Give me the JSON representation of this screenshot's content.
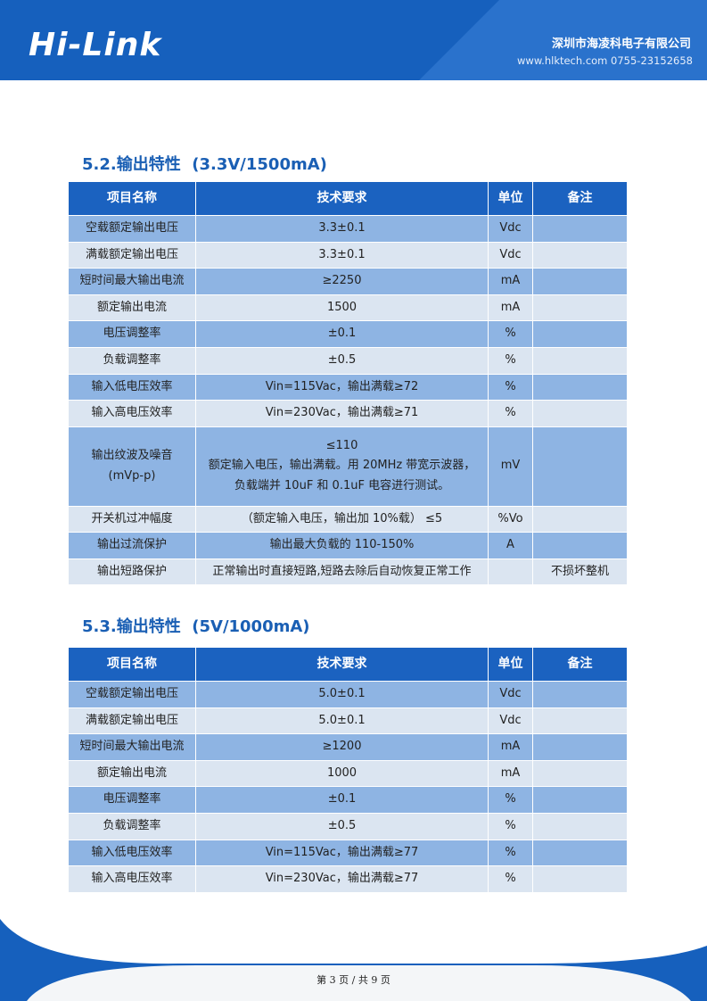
{
  "header": {
    "logo": "Hi-Link",
    "company": "深圳市海凌科电子有限公司",
    "contact": "www.hlktech.com   0755-23152658"
  },
  "sections": [
    {
      "title": "5.2.输出特性  (3.3V/1500mA)",
      "table": {
        "columns": [
          "项目名称",
          "技术要求",
          "单位",
          "备注"
        ],
        "rows": [
          [
            "空载额定输出电压",
            "3.3±0.1",
            "Vdc",
            null
          ],
          [
            "满载额定输出电压",
            "3.3±0.1",
            "Vdc",
            null
          ],
          [
            "短时间最大输出电流",
            "≥2250",
            "mA",
            null
          ],
          [
            "额定输出电流",
            "1500",
            "mA",
            null
          ],
          [
            "电压调整率",
            "±0.1",
            "%",
            null
          ],
          [
            "负载调整率",
            "±0.5",
            "%",
            null
          ],
          [
            "输入低电压效率",
            "Vin=115Vac，输出满载≥72",
            "%",
            null
          ],
          [
            "输入高电压效率",
            "Vin=230Vac，输出满载≥71",
            "%",
            null
          ],
          [
            [
              "输出纹波及噪音",
              "(mVp-p)"
            ],
            [
              "≤110",
              "额定输入电压，输出满载。用 20MHz 带宽示波器，",
              "负载端并 10uF 和 0.1uF 电容进行测试。"
            ],
            "mV",
            null
          ],
          [
            "开关机过冲幅度",
            "（额定输入电压，输出加 10%载） ≤5",
            "%Vo",
            null
          ],
          [
            "输出过流保护",
            "输出最大负载的 110-150%",
            "A",
            null
          ],
          [
            "输出短路保护",
            "正常输出时直接短路,短路去除后自动恢复正常工作",
            null,
            "不损坏整机"
          ]
        ]
      }
    },
    {
      "title": "5.3.输出特性  (5V/1000mA)",
      "table": {
        "columns": [
          "项目名称",
          "技术要求",
          "单位",
          "备注"
        ],
        "rows": [
          [
            "空载额定输出电压",
            "5.0±0.1",
            "Vdc",
            null
          ],
          [
            "满载额定输出电压",
            "5.0±0.1",
            "Vdc",
            null
          ],
          [
            "短时间最大输出电流",
            "≥1200",
            "mA",
            null
          ],
          [
            "额定输出电流",
            "1000",
            "mA",
            null
          ],
          [
            "电压调整率",
            "±0.1",
            "%",
            null
          ],
          [
            "负载调整率",
            "±0.5",
            "%",
            null
          ],
          [
            "输入低电压效率",
            "Vin=115Vac，输出满载≥77",
            "%",
            null
          ],
          [
            "输入高电压效率",
            "Vin=230Vac，输出满载≥77",
            "%",
            null
          ]
        ]
      }
    }
  ],
  "footer": {
    "page": "第 3 页 / 共 9 页"
  }
}
